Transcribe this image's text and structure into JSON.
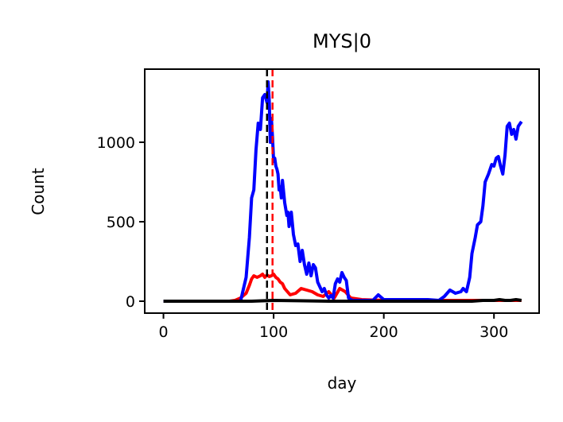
{
  "chart_data": {
    "type": "line",
    "title": "MYS|0",
    "xlabel": "day",
    "ylabel": "Count",
    "xlim": [
      -17,
      341
    ],
    "ylim": [
      -75,
      1460
    ],
    "x_ticks": [
      0,
      100,
      200,
      300
    ],
    "y_ticks": [
      0,
      500,
      1000
    ],
    "grid": false,
    "legend": "none",
    "vlines": [
      {
        "x": 94,
        "color": "#000000",
        "style": "dashed"
      },
      {
        "x": 99,
        "color": "#ff0000",
        "style": "dashed"
      }
    ],
    "series": [
      {
        "color": "#0000ff",
        "x": [
          0,
          60,
          70,
          75,
          78,
          80,
          82,
          84,
          86,
          88,
          90,
          92,
          94,
          95,
          96,
          97,
          98,
          99,
          100,
          101,
          102,
          103,
          104,
          105,
          106,
          107,
          108,
          110,
          112,
          113,
          114,
          116,
          118,
          120,
          122,
          124,
          126,
          128,
          130,
          132,
          134,
          136,
          138,
          140,
          142,
          144,
          146,
          148,
          150,
          152,
          154,
          156,
          158,
          160,
          162,
          164,
          166,
          168,
          170,
          172,
          175,
          190,
          195,
          200,
          210,
          220,
          240,
          250,
          255,
          260,
          265,
          270,
          272,
          275,
          278,
          280,
          283,
          285,
          288,
          290,
          292,
          295,
          298,
          300,
          302,
          304,
          306,
          308,
          310,
          312,
          314,
          316,
          318,
          320,
          322,
          325
        ],
        "values": [
          0,
          0,
          0,
          150,
          400,
          650,
          700,
          950,
          1120,
          1080,
          1280,
          1300,
          1250,
          1380,
          1260,
          1000,
          1150,
          1030,
          880,
          900,
          850,
          830,
          800,
          700,
          720,
          650,
          760,
          620,
          540,
          560,
          470,
          560,
          420,
          350,
          360,
          250,
          320,
          230,
          170,
          240,
          160,
          230,
          210,
          120,
          90,
          60,
          80,
          40,
          20,
          35,
          20,
          110,
          140,
          120,
          180,
          150,
          130,
          20,
          10,
          5,
          5,
          5,
          40,
          10,
          10,
          10,
          10,
          5,
          30,
          70,
          50,
          60,
          80,
          60,
          150,
          300,
          400,
          480,
          500,
          600,
          750,
          800,
          860,
          850,
          900,
          910,
          850,
          800,
          920,
          1100,
          1120,
          1050,
          1080,
          1020,
          1100,
          1130
        ]
      },
      {
        "color": "#ff0000",
        "x": [
          0,
          60,
          65,
          70,
          75,
          78,
          80,
          82,
          85,
          88,
          90,
          92,
          94,
          96,
          98,
          100,
          102,
          104,
          106,
          108,
          110,
          115,
          120,
          125,
          130,
          135,
          140,
          145,
          150,
          155,
          160,
          165,
          170,
          180,
          200,
          230,
          260,
          290,
          310,
          325
        ],
        "values": [
          0,
          0,
          5,
          20,
          50,
          100,
          140,
          160,
          150,
          160,
          170,
          150,
          165,
          155,
          160,
          170,
          150,
          140,
          120,
          110,
          80,
          40,
          50,
          80,
          70,
          60,
          40,
          30,
          60,
          20,
          80,
          60,
          20,
          10,
          5,
          5,
          5,
          5,
          5,
          5
        ]
      },
      {
        "color": "#000000",
        "x": [
          0,
          80,
          100,
          150,
          200,
          250,
          280,
          290,
          300,
          305,
          310,
          315,
          320,
          325
        ],
        "values": [
          0,
          0,
          5,
          0,
          0,
          0,
          0,
          5,
          5,
          10,
          5,
          5,
          10,
          5
        ]
      }
    ]
  }
}
